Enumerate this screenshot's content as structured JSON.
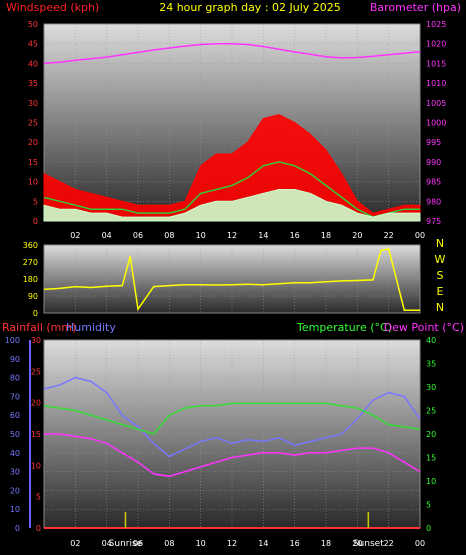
{
  "title": "24 hour graph day : 02 July 2025",
  "colors": {
    "wind": "#ff0000",
    "gust_mid": "#33cc33",
    "wind_light": "#ccffcc",
    "barometer": "#ff33ff",
    "direction": "#ffff00",
    "humidity": "#7777ff",
    "temperature": "#33dd33",
    "dew_point": "#ff33ff",
    "rain_axis": "#ff3333",
    "temp_axis": "#33ff33",
    "hum_axis": "#6666ff",
    "label_white": "#ffffff",
    "sun": "#cccc00"
  },
  "x_axis": {
    "hour_labels": [
      "02",
      "04",
      "06",
      "08",
      "10",
      "12",
      "14",
      "16",
      "18",
      "20",
      "22",
      "00"
    ],
    "sunrise_label": "Sunrise",
    "sunset_label": "Sunset"
  },
  "chart_data": [
    {
      "type": "line",
      "panel": "wind_pressure",
      "left_axis_label": "Windspeed (kph)",
      "right_axis_label": "Barometer (hpa)",
      "left_ticks": [
        "0",
        "5",
        "10",
        "15",
        "20",
        "25",
        "30",
        "35",
        "40",
        "45",
        "50"
      ],
      "right_ticks": [
        "975",
        "980",
        "985",
        "990",
        "995",
        "1000",
        "1005",
        "1010",
        "1015",
        "1020",
        "1025"
      ],
      "ylim_left": [
        0,
        50
      ],
      "ylim_right": [
        975,
        1025
      ],
      "x": [
        0,
        1,
        2,
        3,
        4,
        5,
        6,
        7,
        8,
        9,
        10,
        11,
        12,
        13,
        14,
        15,
        16,
        17,
        18,
        19,
        20,
        21,
        22,
        23,
        24
      ],
      "series": [
        {
          "key": "gust",
          "values": [
            12,
            10,
            8,
            7,
            6,
            5,
            4,
            4,
            4,
            5,
            14,
            17,
            17,
            20,
            26,
            27,
            25,
            22,
            18,
            12,
            5,
            2,
            3,
            4,
            4
          ]
        },
        {
          "key": "average",
          "values": [
            6,
            5,
            4,
            3,
            3,
            3,
            2,
            2,
            2,
            3,
            7,
            8,
            9,
            11,
            14,
            15,
            14,
            12,
            9,
            6,
            3,
            1,
            2,
            3,
            3
          ]
        },
        {
          "key": "light",
          "values": [
            4,
            3,
            3,
            2,
            2,
            1,
            1,
            1,
            1,
            2,
            4,
            5,
            5,
            6,
            7,
            8,
            8,
            7,
            5,
            4,
            2,
            1,
            2,
            2,
            2
          ]
        },
        {
          "key": "barometer",
          "values": [
            1015,
            1015.3,
            1015.8,
            1016.2,
            1016.6,
            1017.2,
            1017.8,
            1018.4,
            1018.9,
            1019.4,
            1019.8,
            1020,
            1020,
            1019.8,
            1019.3,
            1018.6,
            1017.9,
            1017.3,
            1016.7,
            1016.4,
            1016.5,
            1016.8,
            1017.2,
            1017.6,
            1018
          ]
        }
      ]
    },
    {
      "type": "line",
      "panel": "wind_direction",
      "left_ticks": [
        "0",
        "90",
        "180",
        "270",
        "360"
      ],
      "right_labels": [
        "N",
        "W",
        "S",
        "E",
        "N"
      ],
      "ylim": [
        0,
        360
      ],
      "x": [
        0,
        1,
        2,
        3,
        4,
        5,
        5.5,
        6,
        7,
        8,
        9,
        10,
        11,
        12,
        13,
        14,
        15,
        16,
        17,
        18,
        19,
        20,
        21,
        21.5,
        22,
        23,
        24
      ],
      "series": [
        {
          "key": "direction",
          "values": [
            125,
            130,
            140,
            135,
            142,
            145,
            300,
            20,
            140,
            145,
            150,
            150,
            148,
            150,
            152,
            150,
            155,
            160,
            160,
            165,
            170,
            172,
            175,
            330,
            340,
            15,
            15
          ]
        }
      ]
    },
    {
      "type": "line",
      "panel": "temp_humidity",
      "left_outer_axis_label": "Humidity",
      "left_inner_axis_label": "Rainfall (mm)",
      "right_axis_label_1": "Temperature (°C)",
      "right_axis_label_2": "Dew Point (°C)",
      "hum_ticks": [
        "0",
        "10",
        "20",
        "30",
        "40",
        "50",
        "60",
        "70",
        "80",
        "90",
        "100"
      ],
      "rain_ticks": [
        "0",
        "5",
        "10",
        "15",
        "20",
        "25",
        "30"
      ],
      "temp_ticks": [
        "0",
        "5",
        "10",
        "15",
        "20",
        "25",
        "30",
        "35",
        "40"
      ],
      "ylim_humidity": [
        0,
        100
      ],
      "ylim_rain": [
        0,
        30
      ],
      "ylim_temp": [
        0,
        40
      ],
      "x": [
        0,
        1,
        2,
        3,
        4,
        5,
        6,
        7,
        8,
        9,
        10,
        11,
        12,
        13,
        14,
        15,
        16,
        17,
        18,
        19,
        20,
        21,
        22,
        23,
        24
      ],
      "series": [
        {
          "key": "humidity",
          "values": [
            74,
            76,
            80,
            78,
            72,
            60,
            54,
            45,
            38,
            42,
            46,
            48,
            45,
            47,
            46,
            48,
            44,
            46,
            48,
            50,
            58,
            68,
            72,
            70,
            58
          ]
        },
        {
          "key": "temperature",
          "values": [
            26,
            25.5,
            25,
            24,
            23,
            22,
            21,
            20,
            24,
            25.5,
            26,
            26,
            26.5,
            26.5,
            26.5,
            26.5,
            26.5,
            26.5,
            26.5,
            26,
            25.5,
            24,
            22,
            21.5,
            21
          ]
        },
        {
          "key": "dew_point",
          "values": [
            20,
            20,
            19.5,
            19,
            18,
            16,
            14,
            11.5,
            11,
            12,
            13,
            14,
            15,
            15.5,
            16,
            16,
            15.5,
            16,
            16,
            16.5,
            17,
            17,
            16,
            14,
            12
          ]
        },
        {
          "key": "rainfall",
          "values": [
            0,
            0,
            0,
            0,
            0,
            0,
            0,
            0,
            0,
            0,
            0,
            0,
            0,
            0,
            0,
            0,
            0,
            0,
            0,
            0,
            0,
            0,
            0,
            0,
            0
          ]
        }
      ],
      "sunrise_hour": 5.2,
      "sunset_hour": 20.7
    }
  ]
}
